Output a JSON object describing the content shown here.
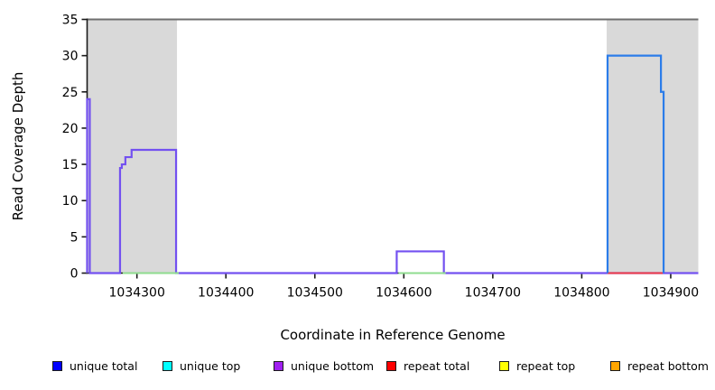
{
  "figure_title": "",
  "chart_data": {
    "type": "line",
    "subtype": "step-coverage",
    "title": "",
    "xlabel": "Coordinate in Reference Genome",
    "ylabel": "Read Coverage Depth",
    "xlim": [
      1034244,
      1034931
    ],
    "ylim": [
      0,
      35
    ],
    "x_ticks": [
      1034300,
      1034400,
      1034500,
      1034600,
      1034700,
      1034800,
      1034900
    ],
    "y_ticks": [
      0,
      5,
      10,
      15,
      20,
      25,
      30,
      35
    ],
    "grid": "off",
    "legend_position": "bottom",
    "shaded_regions": [
      {
        "name": "repeat-region-left",
        "x0": 1034244,
        "x1": 1034345,
        "color": "#d9d9d9"
      },
      {
        "name": "repeat-region-right",
        "x0": 1034828,
        "x1": 1034931,
        "color": "#d9d9d9"
      }
    ],
    "clip_line": {
      "y": 35,
      "color": "#6f6f6f",
      "note": "gray horizontal line across full plot width at y=35"
    },
    "series": [
      {
        "name": "unique bottom coverage (purple step line)",
        "color": "#7351f0",
        "type": "step",
        "points": [
          [
            1034244,
            24
          ],
          [
            1034247,
            0
          ],
          [
            1034281,
            14.5
          ],
          [
            1034283,
            15
          ],
          [
            1034287,
            16
          ],
          [
            1034294,
            17
          ],
          [
            1034344,
            0
          ],
          [
            1034592,
            3
          ],
          [
            1034645,
            0
          ]
        ],
        "end_x": 1034931
      },
      {
        "name": "unique total/top coverage (blue box)",
        "color": "#2b7ce9",
        "type": "step",
        "points": [
          [
            1034829,
            30
          ],
          [
            1034889,
            25
          ],
          [
            1034892,
            0
          ]
        ],
        "end_x": null
      },
      {
        "name": "green baseline segments (depth 0)",
        "color": "#8fdc8f",
        "type": "baseline-segments",
        "segments": [
          [
            1034284,
            1034347
          ],
          [
            1034594,
            1034647
          ]
        ]
      },
      {
        "name": "red baseline segment (depth 0)",
        "color": "#ee3a45",
        "type": "baseline-segments",
        "segments": [
          [
            1034829,
            1034891
          ]
        ]
      }
    ]
  },
  "legend": {
    "items": [
      {
        "label": "unique total",
        "color": "#0000ff"
      },
      {
        "label": "unique top",
        "color": "#00ffff"
      },
      {
        "label": "unique bottom",
        "color": "#a020f0"
      },
      {
        "label": "repeat total",
        "color": "#ff0000"
      },
      {
        "label": "repeat top",
        "color": "#ffff00"
      },
      {
        "label": "repeat bottom",
        "color": "#ffa500"
      }
    ]
  }
}
